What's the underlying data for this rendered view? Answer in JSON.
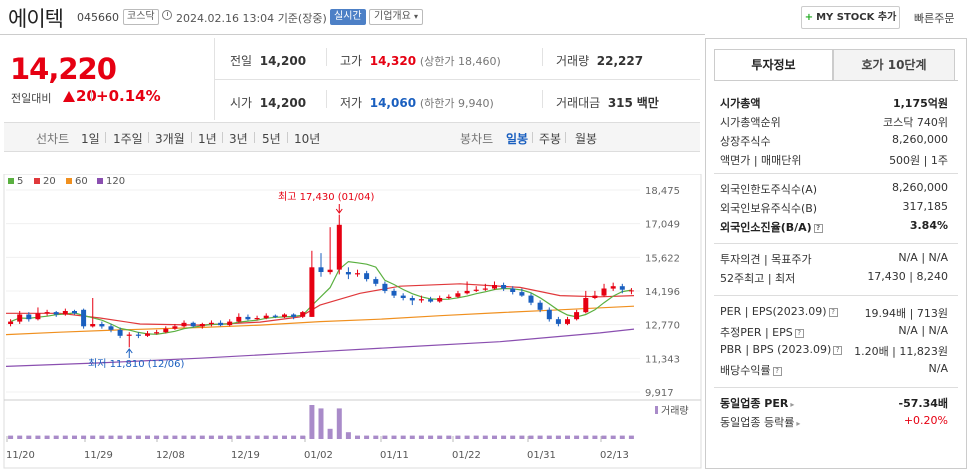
{
  "header": {
    "name": "에이텍",
    "code": "045660",
    "market": "코스닥",
    "datetime": "2024.02.16 13:04",
    "basis": "기준(장중)",
    "live": "실시간",
    "corp_info": "기업개요",
    "mystock": "MY STOCK 추가",
    "quick_order": "빠른주문"
  },
  "quote": {
    "price": "14,220",
    "change_label": "전일대비",
    "change": "20",
    "change_pct": "+0.14%",
    "prev_label": "전일",
    "prev": "14,200",
    "high_label": "고가",
    "high": "14,320",
    "upper_limit": "(상한가 18,460)",
    "volume_label": "거래량",
    "volume": "22,227",
    "open_label": "시가",
    "open": "14,200",
    "low_label": "저가",
    "low": "14,060",
    "lower_limit": "(하한가 9,940)",
    "amount_label": "거래대금",
    "amount": "315",
    "amount_unit": "백만"
  },
  "chart_tabs": {
    "line_label": "선차트",
    "line": [
      "1일",
      "1주일",
      "3개월",
      "1년",
      "3년",
      "5년",
      "10년"
    ],
    "candle_label": "봉차트",
    "candle": [
      "일봉",
      "주봉",
      "월봉"
    ],
    "active": "일봉"
  },
  "legend": [
    {
      "label": "5",
      "color": "#5ab040"
    },
    {
      "label": "20",
      "color": "#e0383b"
    },
    {
      "label": "60",
      "color": "#f0901f"
    },
    {
      "label": "120",
      "color": "#8a4fb0"
    }
  ],
  "chart_data": {
    "type": "candlestick",
    "y_ticks": [
      "18,475",
      "17,049",
      "15,622",
      "14,196",
      "12,770",
      "11,343",
      "9,917"
    ],
    "x_ticks": [
      "11/20",
      "11/29",
      "12/08",
      "12/19",
      "01/02",
      "01/11",
      "01/22",
      "01/31",
      "02/13"
    ],
    "ylim": [
      9917,
      18475
    ],
    "annotations": {
      "high": "최고 17,430 (01/04)",
      "low": "최저 11,810 (12/06)"
    },
    "volume_label": "거래량",
    "candles": [
      {
        "o": 12800,
        "c": 12900,
        "h": 13000,
        "l": 12700
      },
      {
        "o": 12900,
        "c": 13200,
        "h": 13350,
        "l": 12800
      },
      {
        "o": 13200,
        "c": 13000,
        "h": 13300,
        "l": 12900
      },
      {
        "o": 13000,
        "c": 13250,
        "h": 13500,
        "l": 12950
      },
      {
        "o": 13250,
        "c": 13300,
        "h": 13400,
        "l": 13150
      },
      {
        "o": 13300,
        "c": 13200,
        "h": 13350,
        "l": 13100
      },
      {
        "o": 13200,
        "c": 13350,
        "h": 13450,
        "l": 13150
      },
      {
        "o": 13350,
        "c": 13250,
        "h": 13400,
        "l": 13200
      },
      {
        "o": 13400,
        "c": 12700,
        "h": 13450,
        "l": 12600
      },
      {
        "o": 12700,
        "c": 12800,
        "h": 13900,
        "l": 12650
      },
      {
        "o": 12800,
        "c": 12700,
        "h": 12900,
        "l": 12600
      },
      {
        "o": 12700,
        "c": 12550,
        "h": 12800,
        "l": 12450
      },
      {
        "o": 12550,
        "c": 12300,
        "h": 12650,
        "l": 12200
      },
      {
        "o": 12300,
        "c": 12350,
        "h": 12450,
        "l": 11810
      },
      {
        "o": 12350,
        "c": 12300,
        "h": 12450,
        "l": 12200
      },
      {
        "o": 12300,
        "c": 12400,
        "h": 12500,
        "l": 12250
      },
      {
        "o": 12400,
        "c": 12450,
        "h": 12550,
        "l": 12350
      },
      {
        "o": 12450,
        "c": 12600,
        "h": 12700,
        "l": 12400
      },
      {
        "o": 12600,
        "c": 12700,
        "h": 12800,
        "l": 12550
      },
      {
        "o": 12700,
        "c": 12850,
        "h": 12950,
        "l": 12650
      },
      {
        "o": 12850,
        "c": 12700,
        "h": 12900,
        "l": 12650
      },
      {
        "o": 12700,
        "c": 12800,
        "h": 12850,
        "l": 12600
      },
      {
        "o": 12800,
        "c": 12850,
        "h": 12950,
        "l": 12700
      },
      {
        "o": 12850,
        "c": 12750,
        "h": 12950,
        "l": 12700
      },
      {
        "o": 12750,
        "c": 12900,
        "h": 13000,
        "l": 12700
      },
      {
        "o": 12900,
        "c": 13100,
        "h": 13250,
        "l": 12850
      },
      {
        "o": 13100,
        "c": 13000,
        "h": 13200,
        "l": 12950
      },
      {
        "o": 13000,
        "c": 13050,
        "h": 13150,
        "l": 12950
      },
      {
        "o": 13050,
        "c": 13150,
        "h": 13250,
        "l": 13000
      },
      {
        "o": 13150,
        "c": 13100,
        "h": 13200,
        "l": 13050
      },
      {
        "o": 13100,
        "c": 13200,
        "h": 13250,
        "l": 13050
      },
      {
        "o": 13200,
        "c": 13100,
        "h": 13250,
        "l": 13000
      },
      {
        "o": 13100,
        "c": 13300,
        "h": 13350,
        "l": 13050
      },
      {
        "o": 13100,
        "c": 15200,
        "h": 15900,
        "l": 13100
      },
      {
        "o": 15200,
        "c": 15000,
        "h": 15800,
        "l": 14800
      },
      {
        "o": 15000,
        "c": 15100,
        "h": 16900,
        "l": 14900
      },
      {
        "o": 15100,
        "c": 17000,
        "h": 17430,
        "l": 14900
      },
      {
        "o": 15000,
        "c": 14900,
        "h": 15200,
        "l": 14700
      },
      {
        "o": 14900,
        "c": 14950,
        "h": 15100,
        "l": 14800
      },
      {
        "o": 14950,
        "c": 14700,
        "h": 15050,
        "l": 14600
      },
      {
        "o": 14700,
        "c": 14500,
        "h": 14800,
        "l": 14400
      },
      {
        "o": 14500,
        "c": 14200,
        "h": 14600,
        "l": 14100
      },
      {
        "o": 14200,
        "c": 14000,
        "h": 14300,
        "l": 13900
      },
      {
        "o": 14000,
        "c": 13900,
        "h": 14100,
        "l": 13800
      },
      {
        "o": 13900,
        "c": 13800,
        "h": 14000,
        "l": 13600
      },
      {
        "o": 13800,
        "c": 13850,
        "h": 14000,
        "l": 13700
      },
      {
        "o": 13850,
        "c": 13750,
        "h": 13950,
        "l": 13700
      },
      {
        "o": 13750,
        "c": 13900,
        "h": 14000,
        "l": 13700
      },
      {
        "o": 13900,
        "c": 13950,
        "h": 14050,
        "l": 13850
      },
      {
        "o": 13950,
        "c": 14100,
        "h": 14200,
        "l": 13900
      },
      {
        "o": 14100,
        "c": 14200,
        "h": 14600,
        "l": 14050
      },
      {
        "o": 14200,
        "c": 14250,
        "h": 14400,
        "l": 14150
      },
      {
        "o": 14250,
        "c": 14300,
        "h": 14500,
        "l": 14200
      },
      {
        "o": 14300,
        "c": 14450,
        "h": 14600,
        "l": 14250
      },
      {
        "o": 14450,
        "c": 14300,
        "h": 14550,
        "l": 14200
      },
      {
        "o": 14300,
        "c": 14150,
        "h": 14400,
        "l": 14050
      },
      {
        "o": 14150,
        "c": 14000,
        "h": 14300,
        "l": 13950
      },
      {
        "o": 14000,
        "c": 13700,
        "h": 14100,
        "l": 13600
      },
      {
        "o": 13700,
        "c": 13400,
        "h": 13800,
        "l": 13300
      },
      {
        "o": 13400,
        "c": 13000,
        "h": 13500,
        "l": 12900
      },
      {
        "o": 13000,
        "c": 12800,
        "h": 13100,
        "l": 12700
      },
      {
        "o": 12800,
        "c": 13000,
        "h": 13100,
        "l": 12750
      },
      {
        "o": 13000,
        "c": 13300,
        "h": 13400,
        "l": 12950
      },
      {
        "o": 13300,
        "c": 13900,
        "h": 14200,
        "l": 13250
      },
      {
        "o": 13900,
        "c": 14000,
        "h": 14200,
        "l": 13850
      },
      {
        "o": 14000,
        "c": 14300,
        "h": 14500,
        "l": 13950
      },
      {
        "o": 14300,
        "c": 14400,
        "h": 14550,
        "l": 14200
      },
      {
        "o": 14400,
        "c": 14250,
        "h": 14500,
        "l": 14100
      },
      {
        "o": 14200,
        "c": 14220,
        "h": 14320,
        "l": 14060
      }
    ],
    "volume": [
      1,
      1,
      1,
      1,
      1,
      1,
      1,
      1,
      1,
      1,
      1,
      1,
      1,
      1,
      1,
      1,
      1,
      1,
      1,
      1,
      1,
      1,
      1,
      1,
      1,
      1,
      1,
      1,
      1,
      1,
      1,
      1,
      1,
      10,
      9,
      3,
      9,
      2,
      1,
      1,
      1,
      1,
      1,
      1,
      1,
      1,
      1,
      1,
      1,
      1,
      1,
      1,
      1,
      1,
      1,
      1,
      1,
      1,
      1,
      1,
      1,
      1,
      1,
      1,
      1,
      1,
      1,
      1,
      1
    ],
    "ma": {
      "5": {
        "start": 12900,
        "shape": "follows price"
      },
      "20": {
        "from": 13250,
        "to": 13950
      },
      "60": {
        "from": 12350,
        "to": 13550
      },
      "120": {
        "from": 11000,
        "to": 12580
      }
    }
  },
  "panel": {
    "tab1": "투자정보",
    "tab2": "호가 10단계",
    "rows1": [
      {
        "l": "시가총액",
        "v": "1,175억원",
        "bold": true
      },
      {
        "l": "시가총액순위",
        "v": "코스닥 740위"
      },
      {
        "l": "상장주식수",
        "v": "8,260,000"
      },
      {
        "l": "액면가 | 매매단위",
        "v": "500원 | 1주"
      }
    ],
    "rows2": [
      {
        "l": "외국인한도주식수(A)",
        "v": "8,260,000"
      },
      {
        "l": "외국인보유주식수(B)",
        "v": "317,185"
      },
      {
        "l": "외국인소진율(B/A)",
        "v": "3.84%",
        "bold": true
      }
    ],
    "rows3": [
      {
        "l": "투자의견 | 목표주가",
        "v": "N/A | N/A"
      },
      {
        "l": "52주최고 | 최저",
        "v": "17,430 | 8,240"
      }
    ],
    "rows4": [
      {
        "l": "PER | EPS(2023.09)",
        "v": "19.94배 | 713원"
      },
      {
        "l": "추정PER | EPS",
        "v": "N/A | N/A"
      },
      {
        "l": "PBR | BPS (2023.09)",
        "v": "1.20배 | 11,823원"
      },
      {
        "l": "배당수익률",
        "v": "N/A"
      }
    ],
    "rows5": [
      {
        "l": "동일업종 PER",
        "v": "-57.34배",
        "bold": true
      },
      {
        "l": "동일업종 등락률",
        "v": "+0.20%",
        "red": true
      }
    ]
  }
}
